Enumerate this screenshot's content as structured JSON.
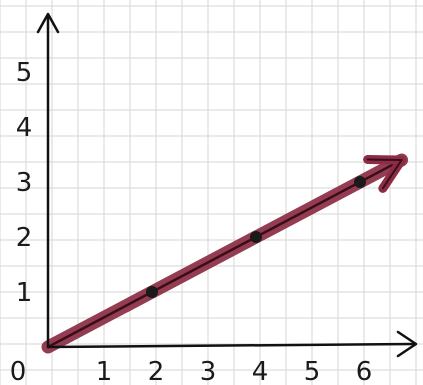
{
  "chart_data": {
    "type": "line",
    "title": "",
    "xlabel": "",
    "ylabel": "",
    "x_ticks": [
      "0",
      "1",
      "2",
      "3",
      "4",
      "5",
      "6"
    ],
    "y_ticks": [
      "1",
      "2",
      "3",
      "4",
      "5"
    ],
    "xlim": [
      0,
      7
    ],
    "ylim": [
      0,
      6
    ],
    "grid": true,
    "series": [
      {
        "type": "arrow",
        "from": [
          0,
          0
        ],
        "to": [
          6.8,
          3.4
        ],
        "color": "#8b2d44"
      },
      {
        "type": "points",
        "x": [
          2,
          4,
          6
        ],
        "y": [
          1,
          2,
          3
        ],
        "color": "#1a1a1a"
      }
    ]
  }
}
